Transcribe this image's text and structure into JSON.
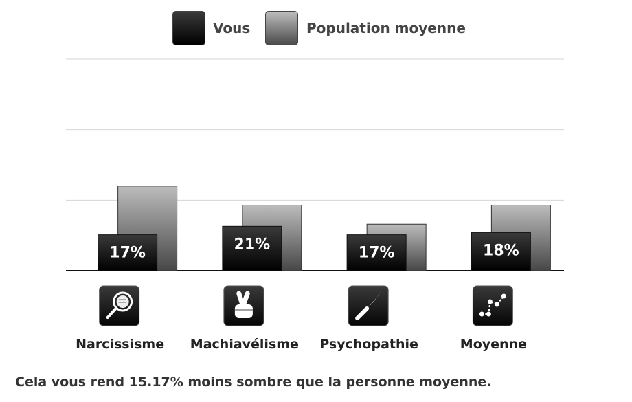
{
  "legend": {
    "you_label": "Vous",
    "population_label": "Population moyenne"
  },
  "chart_data": {
    "type": "bar",
    "categories": [
      "Narcissisme",
      "Machiavélisme",
      "Psychopathie",
      "Moyenne"
    ],
    "series": [
      {
        "name": "Vous",
        "values": [
          17,
          21,
          17,
          18
        ],
        "labels": [
          "17%",
          "21%",
          "17%",
          "18%"
        ],
        "color": "#000000"
      },
      {
        "name": "Population moyenne",
        "values": [
          40,
          31,
          22,
          31
        ],
        "color": "#5a5a5a"
      }
    ],
    "icons": [
      "magnifier-icon",
      "crossed-fingers-icon",
      "knife-icon",
      "scatter-trend-icon"
    ],
    "ylim": [
      0,
      100
    ],
    "grid": true,
    "legend_position": "top"
  },
  "summary_text": "Cela vous rend 15.17% moins sombre que la personne moyenne."
}
